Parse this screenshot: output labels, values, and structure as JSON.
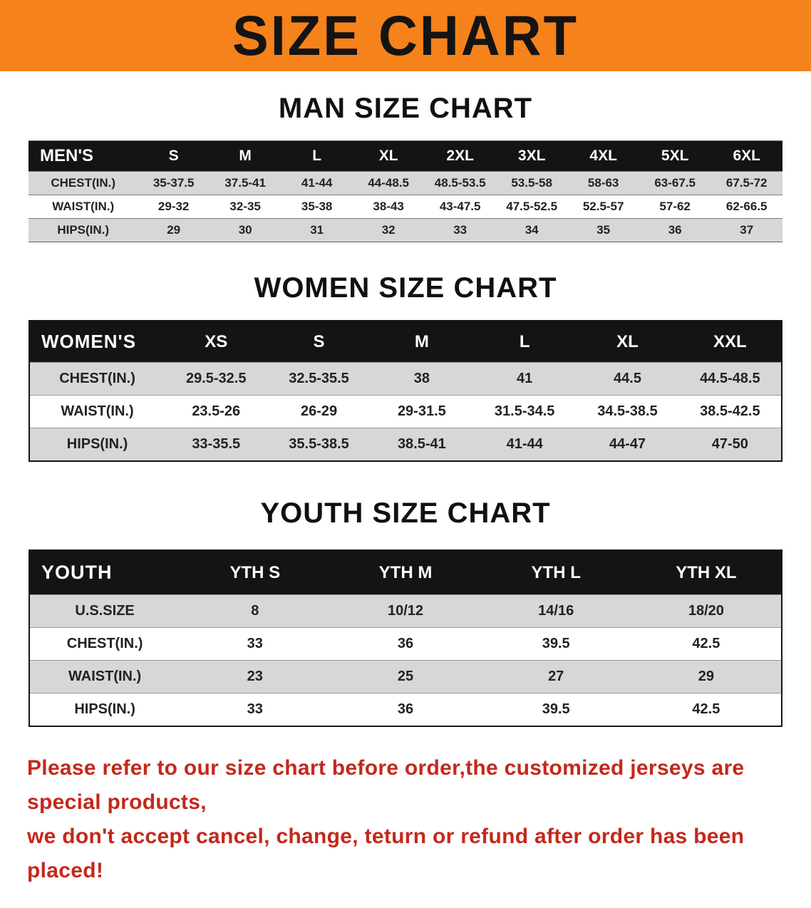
{
  "banner": {
    "title": "SIZE CHART"
  },
  "colors": {
    "banner_bg": "#f6821c",
    "header_bg": "#141414",
    "stripe_gray": "#d7d7d7",
    "footer_red": "#c4281b"
  },
  "sections": [
    {
      "heading": "MAN SIZE CHART",
      "table": {
        "header": [
          "MEN'S",
          "S",
          "M",
          "L",
          "XL",
          "2XL",
          "3XL",
          "4XL",
          "5XL",
          "6XL"
        ],
        "rows": [
          [
            "CHEST(IN.)",
            "35-37.5",
            "37.5-41",
            "41-44",
            "44-48.5",
            "48.5-53.5",
            "53.5-58",
            "58-63",
            "63-67.5",
            "67.5-72"
          ],
          [
            "WAIST(IN.)",
            "29-32",
            "32-35",
            "35-38",
            "38-43",
            "43-47.5",
            "47.5-52.5",
            "52.5-57",
            "57-62",
            "62-66.5"
          ],
          [
            "HIPS(IN.)",
            "29",
            "30",
            "31",
            "32",
            "33",
            "34",
            "35",
            "36",
            "37"
          ]
        ]
      }
    },
    {
      "heading": "WOMEN SIZE CHART",
      "table": {
        "header": [
          "WOMEN'S",
          "XS",
          "S",
          "M",
          "L",
          "XL",
          "XXL"
        ],
        "rows": [
          [
            "CHEST(IN.)",
            "29.5-32.5",
            "32.5-35.5",
            "38",
            "41",
            "44.5",
            "44.5-48.5"
          ],
          [
            "WAIST(IN.)",
            "23.5-26",
            "26-29",
            "29-31.5",
            "31.5-34.5",
            "34.5-38.5",
            "38.5-42.5"
          ],
          [
            "HIPS(IN.)",
            "33-35.5",
            "35.5-38.5",
            "38.5-41",
            "41-44",
            "44-47",
            "47-50"
          ]
        ]
      }
    },
    {
      "heading": "YOUTH SIZE CHART",
      "table": {
        "header": [
          "YOUTH",
          "YTH S",
          "YTH M",
          "YTH L",
          "YTH XL"
        ],
        "rows": [
          [
            "U.S.SIZE",
            "8",
            "10/12",
            "14/16",
            "18/20"
          ],
          [
            "CHEST(IN.)",
            "33",
            "36",
            "39.5",
            "42.5"
          ],
          [
            "WAIST(IN.)",
            "23",
            "25",
            "27",
            "29"
          ],
          [
            "HIPS(IN.)",
            "33",
            "36",
            "39.5",
            "42.5"
          ]
        ]
      }
    }
  ],
  "footer": {
    "line1": "Please refer to our size chart before order,the customized jerseys are special products,",
    "line2": "we don't accept cancel, change, teturn or refund after order has been placed!"
  }
}
